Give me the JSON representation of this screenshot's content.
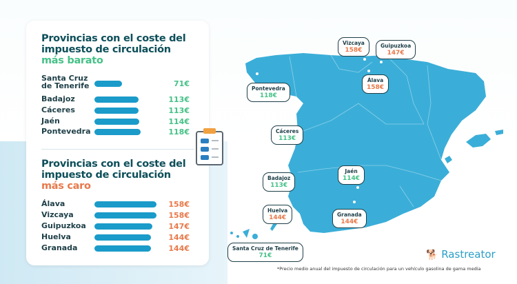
{
  "cheap": {
    "title_line1": "Provincias con el coste del",
    "title_line2": "impuesto de circulación",
    "highlight": "más barato"
  },
  "expensive": {
    "title_line1": "Provincias con el coste del",
    "title_line2": "impuesto de circulación",
    "highlight": "más caro"
  },
  "chart_data": [
    {
      "type": "bar",
      "title": "Provincias con el coste del impuesto de circulación más barato",
      "categories": [
        "Santa Cruz de Tenerife",
        "Badajoz",
        "Cáceres",
        "Jaén",
        "Pontevedra"
      ],
      "values": [
        71,
        113,
        113,
        114,
        118
      ],
      "labels": [
        "71€",
        "113€",
        "113€",
        "114€",
        "118€"
      ],
      "unit": "€",
      "orientation": "horizontal",
      "color": "#45c187"
    },
    {
      "type": "bar",
      "title": "Provincias con el coste del impuesto de circulación más caro",
      "categories": [
        "Álava",
        "Vizcaya",
        "Guipuzkoa",
        "Huelva",
        "Granada"
      ],
      "values": [
        158,
        158,
        147,
        144,
        144
      ],
      "labels": [
        "158€",
        "158€",
        "147€",
        "144€",
        "144€"
      ],
      "unit": "€",
      "orientation": "horizontal",
      "color": "#e8794a"
    }
  ],
  "map_tags": [
    {
      "name": "Vizcaya",
      "price": "158€",
      "tone": "orange"
    },
    {
      "name": "Guipuzkoa",
      "price": "147€",
      "tone": "orange"
    },
    {
      "name": "Pontevedra",
      "price": "118€",
      "tone": "green"
    },
    {
      "name": "Álava",
      "price": "158€",
      "tone": "orange"
    },
    {
      "name": "Cáceres",
      "price": "113€",
      "tone": "green"
    },
    {
      "name": "Jaén",
      "price": "114€",
      "tone": "green"
    },
    {
      "name": "Badajoz",
      "price": "113€",
      "tone": "green"
    },
    {
      "name": "Huelva",
      "price": "144€",
      "tone": "orange"
    },
    {
      "name": "Granada",
      "price": "144€",
      "tone": "orange"
    },
    {
      "name": "Santa Cruz de Tenerife",
      "price": "71€",
      "tone": "green"
    }
  ],
  "brand": "Rastreator",
  "footnote": "*Precio medio anual del impuesto de circulación para un vehículo gasolina de gama media",
  "colors": {
    "title": "#0d4f5a",
    "green": "#45c187",
    "orange": "#e8794a",
    "bar": "#1a9bc9",
    "map": "#3aaed8"
  }
}
